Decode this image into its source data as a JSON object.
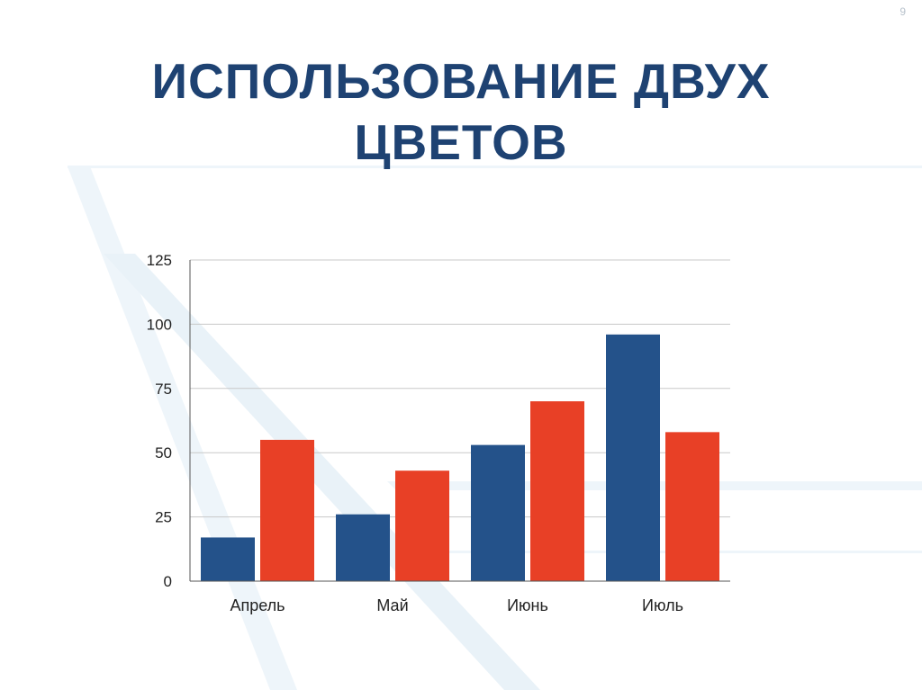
{
  "slide": {
    "number": "9",
    "title_line1": "ИСПОЛЬЗОВАНИЕ ДВУХ",
    "title_line2": "ЦВЕТОВ"
  },
  "colors": {
    "series1": "#24528a",
    "series2": "#e84026",
    "title": "#1e4272",
    "grid": "#c8c8c8",
    "decor": "#e8f1f7"
  },
  "chart_data": {
    "type": "bar",
    "categories": [
      "Апрель",
      "Май",
      "Июнь",
      "Июль"
    ],
    "series": [
      {
        "values": [
          17,
          26,
          53,
          96
        ]
      },
      {
        "values": [
          55,
          43,
          70,
          58
        ]
      }
    ],
    "yticks": [
      "0",
      "25",
      "50",
      "75",
      "100",
      "125"
    ],
    "ylim": [
      0,
      125
    ],
    "grid": true,
    "legend": "none"
  }
}
